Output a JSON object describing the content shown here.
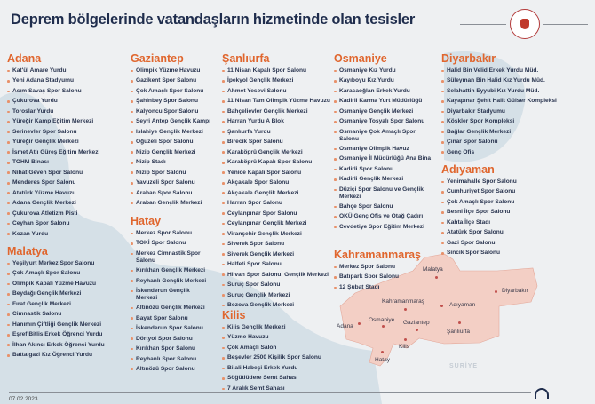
{
  "header": {
    "title": "Deprem bölgelerinde vatandaşların hizmetinde olan tesisler"
  },
  "colors": {
    "heading": "#e0662e",
    "title": "#1f2d4d",
    "region": "#f3cfc5",
    "sea": "#cbd9e3"
  },
  "sections": [
    {
      "name": "Adana",
      "items": [
        "Kat'ül Amare Yurdu",
        "Yeni Adana Stadyumu",
        "Asım Savaş Spor Salonu",
        "Çukurova Yurdu",
        "Toroslar Yurdu",
        "Yüreğir Kamp Eğitim Merkezi",
        "Serinevler Spor Salonu",
        "Yüreğir Gençlik Merkezi",
        "İsmet Atlı Güreş Eğitim Merkezi",
        "TOHM Binası",
        "Nihat Geven Spor Salonu",
        "Menderes Spor Salonu",
        "Atatürk Yüzme Havuzu",
        "Adana Gençlik Merkezi",
        "Çukurova Atletizm Pisti",
        "Ceyhan Spor Salonu",
        "Kozan Yurdu"
      ]
    },
    {
      "name": "Malatya",
      "items": [
        "Yeşilyurt Merkez Spor Salonu",
        "Çok Amaçlı Spor Salonu",
        "Olimpik Kapalı Yüzme Havuzu",
        "Beydağı Gençlik Merkezi",
        "Fırat Gençlik Merkezi",
        "Cimnastik Salonu",
        "Hanımın Çiftliği Gençlik Merkezi",
        "Eşref Bitlis Erkek Öğrenci Yurdu",
        "İlhan Akıncı Erkek Öğrenci Yurdu",
        "Battalgazi Kız Öğrenci Yurdu"
      ]
    },
    {
      "name": "Gaziantep",
      "items": [
        "Olimpik Yüzme Havuzu",
        "Gazikent Spor Salonu",
        "Çok Amaçlı Spor Salonu",
        "Şahinbey Spor Salonu",
        "Kalyoncu Spor Salonu",
        "Seyri Antep Gençlik Kampı",
        "Islahiye Gençlik Merkezi",
        "Oğuzeli Spor Salonu",
        "Nizip Gençlik Merkezi",
        "Nizip Stadı",
        "Nizip Spor Salonu",
        "Yavuzeli Spor Salonu",
        "Araban Spor Salonu",
        "Araban Gençlik Merkezi"
      ]
    },
    {
      "name": "Hatay",
      "items": [
        "Merkez Spor Salonu",
        "TOKİ Spor Salonu",
        "Merkez Cimnastik Spor Salonu",
        "Kırıkhan Gençlik Merkezi",
        "Reyhanlı Gençlik Merkezi",
        "İskenderun Gençlik Merkezi",
        "Altınözü Gençlik Merkezi",
        "Bayat Spor Salonu",
        "İskenderun Spor Salonu",
        "Dörtyol Spor Salonu",
        "Kırıkhan Spor Salonu",
        "Reyhanlı Spor Salonu",
        "Altınözü Spor Salonu"
      ]
    },
    {
      "name": "Şanlıurfa",
      "items": [
        "11 Nisan Kapalı Spor Salonu",
        "İpekyol Gençlik Merkezi",
        "Ahmet Yesevi Salonu",
        "11 Nisan Tam Olimpik Yüzme Havuzu",
        "Bahçelievler Gençlik Merkezi",
        "Harran Yurdu A Blok",
        "Şanlıurfa Yurdu",
        "Birecik Spor Salonu",
        "Karaköprü Gençlik Merkezi",
        "Karaköprü Kapalı Spor Salonu",
        "Yenice Kapalı Spor Salonu",
        "Akçakale Spor Salonu",
        "Akçakale Gençlik Merkezi",
        "Harran Spor Salonu",
        "Ceylanpınar Spor Salonu",
        "Ceylanpınar Gençlik Merkezi",
        "Viranşehir Gençlik Merkezi",
        "Siverek Spor Salonu",
        "Siverek Gençlik Merkezi",
        "Halfeti Spor Salonu",
        "Hilvan Spor Salonu, Gençlik Merkezi",
        "Suruç Spor Salonu",
        "Suruç Gençlik Merkezi",
        "Bozova Gençlik Merkezi"
      ]
    },
    {
      "name": "Kilis",
      "items": [
        "Kilis Gençlik Merkezi",
        "Yüzme Havuzu",
        "Çok Amaçlı Salon",
        "Beşevler 2500 Kişilik Spor Salonu",
        "Bilali Habeşi Erkek Yurdu",
        "Söğütlüdere Semt Sahası",
        "7 Aralık Semt Sahası"
      ]
    },
    {
      "name": "Osmaniye",
      "items": [
        "Osmaniye Kız Yurdu",
        "Kayıboyu Kız Yurdu",
        "Karacaoğlan Erkek Yurdu",
        "Kadirli Karma Yurt Müdürlüğü",
        "Osmaniye Gençlik Merkezi",
        "Osmaniye Tosyalı Spor Salonu",
        "Osmaniye Çok Amaçlı Spor Salonu",
        "Osmaniye Olimpik Havuz",
        "Osmaniye İl Müdürlüğü Ana Bina",
        "Kadirli Spor Salonu",
        "Kadirli Gençlik Merkezi",
        "Düziçi Spor Salonu ve Gençlik Merkezi",
        "Bahçe Spor Salonu",
        "OKÜ Genç Ofis ve Otağ Çadırı",
        "Cevdetiye Spor Eğitim Merkezi"
      ]
    },
    {
      "name": "Kahramanmaraş",
      "items": [
        "Merkez Spor Salonu",
        "Batıpark Spor Salonu",
        "12 Şubat Stadı"
      ]
    },
    {
      "name": "Diyarbakır",
      "items": [
        "Halid Bin Velid Erkek Yurdu Müd.",
        "Süleyman Bin Halid Kız Yurdu Müd.",
        "Selahattin Eyyubi Kız Yurdu Müd.",
        "Kayapınar Şehit Halit Gülser Kompleksi",
        "Diyarbakır Stadyumu",
        "Köşkler Spor Kompleksi",
        "Bağlar Gençlik Merkezi",
        "Çınar Spor Salonu",
        "Genç Ofis"
      ]
    },
    {
      "name": "Adıyaman",
      "items": [
        "Yenimahalle Spor Salonu",
        "Cumhuriyet Spor Salonu",
        "Çok Amaçlı Spor Salonu",
        "Besni İlçe Spor Salonu",
        "Kahta İlçe Stadı",
        "Atatürk Spor Salonu",
        "Gazi Spor Salonu",
        "Sincik Spor Salonu"
      ]
    }
  ],
  "map": {
    "labels": [
      "Malatya",
      "Diyarbakır",
      "Kahramanmaraş",
      "Adıyaman",
      "Adana",
      "Osmaniye",
      "Gaziantep",
      "Şanlıurfa",
      "Kilis",
      "Hatay"
    ],
    "country_label": "SURİYE"
  },
  "footer": {
    "date": "07.02.2023"
  }
}
